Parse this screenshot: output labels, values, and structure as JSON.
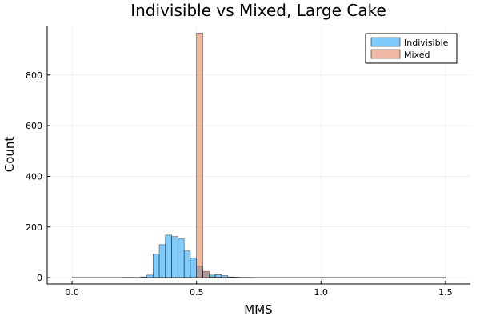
{
  "chart_data": {
    "type": "bar",
    "title": "Indivisible vs Mixed, Large Cake",
    "xlabel": "MMS",
    "ylabel": "Count",
    "xlim": [
      -0.1,
      1.6
    ],
    "ylim": [
      -25,
      995
    ],
    "xticks": [
      0.0,
      0.5,
      1.0,
      1.5
    ],
    "xtick_labels": [
      "0.0",
      "0.5",
      "1.0",
      "1.5"
    ],
    "yticks": [
      0,
      200,
      400,
      600,
      800
    ],
    "ytick_labels": [
      "0",
      "200",
      "400",
      "600",
      "800"
    ],
    "grid": true,
    "legend_position": "top-right",
    "bin_width": 0.025,
    "bins_start": 0.0,
    "series": [
      {
        "name": "Indivisible",
        "color": "#009af9",
        "values": [
          0,
          0,
          0,
          0,
          0,
          0,
          0,
          0,
          1,
          1,
          0,
          3,
          10,
          93,
          130,
          168,
          162,
          153,
          105,
          78,
          45,
          20,
          10,
          12,
          8,
          3,
          2,
          1,
          1,
          0,
          0,
          0,
          0,
          0,
          0,
          0,
          0,
          0,
          0,
          0,
          0,
          0,
          0,
          0,
          0,
          0,
          0,
          0,
          0,
          0,
          0,
          0,
          0,
          0,
          0,
          0,
          0,
          0,
          0,
          0
        ]
      },
      {
        "name": "Mixed",
        "color": "#e26f46",
        "values": [
          0,
          0,
          0,
          0,
          0,
          0,
          0,
          0,
          0,
          0,
          0,
          0,
          0,
          0,
          0,
          0,
          0,
          0,
          0,
          0,
          965,
          25,
          3,
          2,
          1,
          1,
          0,
          0,
          0,
          0,
          0,
          0,
          0,
          0,
          0,
          0,
          0,
          0,
          0,
          0,
          0,
          0,
          0,
          0,
          0,
          0,
          0,
          0,
          0,
          0,
          0,
          0,
          0,
          0,
          0,
          0,
          0,
          0,
          0,
          0
        ]
      }
    ]
  }
}
